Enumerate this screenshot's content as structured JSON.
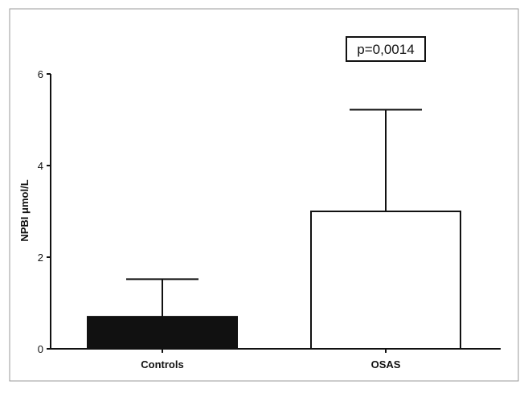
{
  "chart_data": {
    "type": "bar",
    "categories": [
      "Controls",
      "OSAS"
    ],
    "values": [
      0.7,
      3.0
    ],
    "error_upper": [
      1.52,
      5.22
    ],
    "ylabel": "NPBI μmol/L",
    "xlabel": "",
    "ylim": [
      0,
      6
    ],
    "yticks": [
      "0",
      "2",
      "4",
      "6"
    ],
    "annotation": "p=0,0014",
    "bar_fill_colors": [
      "#111111",
      "#ffffff"
    ],
    "grid": false,
    "legend": "none"
  }
}
